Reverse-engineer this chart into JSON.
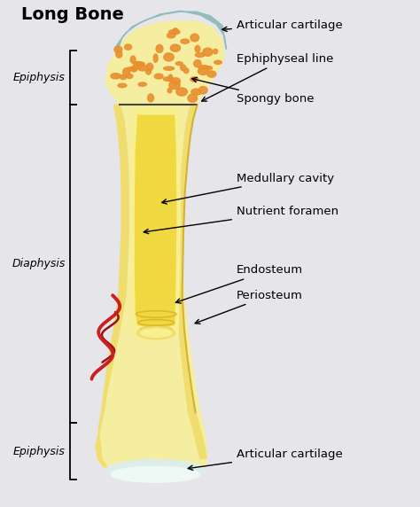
{
  "title": "Long Bone",
  "background_color": "#e5e5ea",
  "bone_yellow_light": "#f5eda0",
  "bone_yellow": "#f0dd70",
  "bone_yellow_dark": "#ddb830",
  "bone_outer_light": "#f8f0b0",
  "cartilage_blue": "#8ab8b8",
  "cartilage_blue_light": "#aad0d0",
  "spongy_color": "#e89030",
  "spongy_light": "#f0a840",
  "medullary_yellow": "#f0d840",
  "medullary_light": "#f8ef90",
  "periosteum_line": "#c8a020",
  "blood_vessel_red": "#cc2020",
  "blood_vessel_dark": "#991010",
  "white_cartilage": "#ddeee8",
  "white_cartilage_light": "#eef8f5",
  "label_fontsize": 9.5,
  "title_fontsize": 14,
  "labels": {
    "articular_cartilage_top": "Articular cartilage",
    "ephiphyseal_line": "Ephiphyseal line",
    "spongy_bone": "Spongy bone",
    "medullary_cavity": "Medullary cavity",
    "nutrient_foramen": "Nutrient foramen",
    "endosteum": "Endosteum",
    "periosteum": "Periosteum",
    "articular_cartilage_bottom": "Articular cartilage"
  },
  "region_labels": {
    "epiphysis_top": "Epiphysis",
    "diaphysis": "Diaphysis",
    "epiphysis_bottom": "Epiphysis"
  }
}
